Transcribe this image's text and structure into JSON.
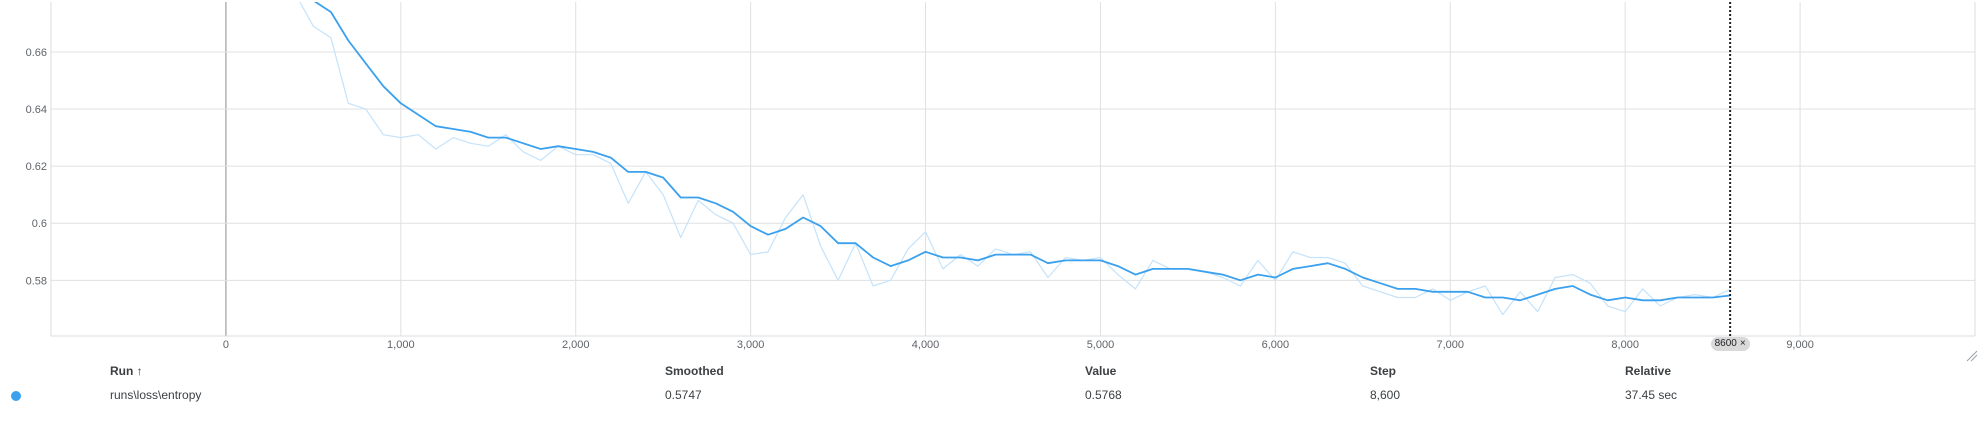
{
  "chart_data": {
    "type": "line",
    "xlim": [
      -1000,
      10000
    ],
    "ylim": [
      0.5605,
      0.6775
    ],
    "x_ticks": [
      0,
      1000,
      2000,
      3000,
      4000,
      5000,
      6000,
      7000,
      8000,
      9000
    ],
    "x_tick_labels": [
      "0",
      "1,000",
      "2,000",
      "3,000",
      "4,000",
      "5,000",
      "6,000",
      "7,000",
      "8,000",
      "9,000"
    ],
    "y_ticks": [
      0.58,
      0.6,
      0.62,
      0.64,
      0.66
    ],
    "y_tick_labels": [
      "0.58",
      "0.6",
      "0.62",
      "0.64",
      "0.66"
    ],
    "grid": true,
    "cursor_step": 8600,
    "cursor_label": "8600",
    "series": [
      {
        "role": "raw",
        "color": "#c5e3fa",
        "x": [
          400,
          500,
          600,
          700,
          800,
          900,
          1000,
          1100,
          1200,
          1300,
          1400,
          1500,
          1600,
          1700,
          1800,
          1900,
          2000,
          2100,
          2200,
          2300,
          2400,
          2500,
          2600,
          2700,
          2800,
          2900,
          3000,
          3100,
          3200,
          3300,
          3400,
          3500,
          3600,
          3700,
          3800,
          3900,
          4000,
          4100,
          4200,
          4300,
          4400,
          4500,
          4600,
          4700,
          4800,
          4900,
          5000,
          5100,
          5200,
          5300,
          5400,
          5500,
          5600,
          5700,
          5800,
          5900,
          6000,
          6100,
          6200,
          6300,
          6400,
          6500,
          6600,
          6700,
          6800,
          6900,
          7000,
          7100,
          7200,
          7300,
          7400,
          7500,
          7600,
          7700,
          7800,
          7900,
          8000,
          8100,
          8200,
          8300,
          8400,
          8500,
          8600
        ],
        "values": [
          0.68,
          0.669,
          0.665,
          0.642,
          0.64,
          0.631,
          0.63,
          0.631,
          0.626,
          0.63,
          0.628,
          0.627,
          0.631,
          0.625,
          0.622,
          0.627,
          0.624,
          0.624,
          0.621,
          0.607,
          0.618,
          0.61,
          0.595,
          0.608,
          0.603,
          0.6,
          0.589,
          0.59,
          0.602,
          0.61,
          0.592,
          0.58,
          0.593,
          0.578,
          0.58,
          0.591,
          0.597,
          0.584,
          0.589,
          0.585,
          0.591,
          0.589,
          0.59,
          0.581,
          0.588,
          0.587,
          0.588,
          0.582,
          0.577,
          0.587,
          0.584,
          0.584,
          0.583,
          0.581,
          0.578,
          0.587,
          0.58,
          0.59,
          0.588,
          0.588,
          0.586,
          0.578,
          0.576,
          0.574,
          0.574,
          0.577,
          0.573,
          0.576,
          0.578,
          0.568,
          0.576,
          0.569,
          0.581,
          0.582,
          0.579,
          0.571,
          0.569,
          0.577,
          0.571,
          0.574,
          0.575,
          0.574,
          0.5768
        ]
      },
      {
        "role": "smoothed",
        "color": "#3ba0ed",
        "x": [
          400,
          500,
          600,
          700,
          800,
          900,
          1000,
          1100,
          1200,
          1300,
          1400,
          1500,
          1600,
          1700,
          1800,
          1900,
          2000,
          2100,
          2200,
          2300,
          2400,
          2500,
          2600,
          2700,
          2800,
          2900,
          3000,
          3100,
          3200,
          3300,
          3400,
          3500,
          3600,
          3700,
          3800,
          3900,
          4000,
          4100,
          4200,
          4300,
          4400,
          4500,
          4600,
          4700,
          4800,
          4900,
          5000,
          5100,
          5200,
          5300,
          5400,
          5500,
          5600,
          5700,
          5800,
          5900,
          6000,
          6100,
          6200,
          6300,
          6400,
          6500,
          6600,
          6700,
          6800,
          6900,
          7000,
          7100,
          7200,
          7300,
          7400,
          7500,
          7600,
          7700,
          7800,
          7900,
          8000,
          8100,
          8200,
          8300,
          8400,
          8500,
          8600
        ],
        "values": [
          0.684,
          0.678,
          0.674,
          0.664,
          0.656,
          0.648,
          0.642,
          0.638,
          0.634,
          0.633,
          0.632,
          0.63,
          0.63,
          0.628,
          0.626,
          0.627,
          0.626,
          0.625,
          0.623,
          0.618,
          0.618,
          0.616,
          0.609,
          0.609,
          0.607,
          0.604,
          0.599,
          0.596,
          0.598,
          0.602,
          0.599,
          0.593,
          0.593,
          0.588,
          0.585,
          0.587,
          0.59,
          0.588,
          0.588,
          0.587,
          0.589,
          0.589,
          0.589,
          0.586,
          0.587,
          0.587,
          0.587,
          0.585,
          0.582,
          0.584,
          0.584,
          0.584,
          0.583,
          0.582,
          0.58,
          0.582,
          0.581,
          0.584,
          0.585,
          0.586,
          0.584,
          0.581,
          0.579,
          0.577,
          0.577,
          0.576,
          0.576,
          0.576,
          0.574,
          0.574,
          0.573,
          0.575,
          0.577,
          0.578,
          0.575,
          0.573,
          0.574,
          0.573,
          0.573,
          0.574,
          0.574,
          0.574,
          0.5747
        ]
      }
    ]
  },
  "table": {
    "headers": {
      "run": "Run ↑",
      "smoothed": "Smoothed",
      "value": "Value",
      "step": "Step",
      "relative": "Relative"
    },
    "row": {
      "color": "#3ba0ed",
      "run": "runs\\loss\\entropy",
      "smoothed": "0.5747",
      "value": "0.5768",
      "step": "8,600",
      "relative": "37.45 sec"
    }
  }
}
